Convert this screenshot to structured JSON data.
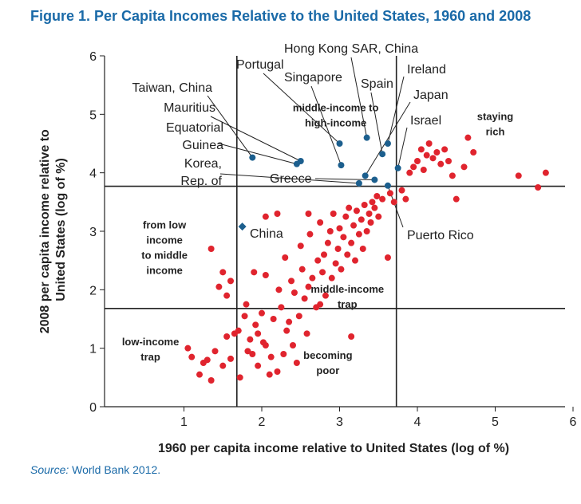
{
  "figure": {
    "title": "Figure 1. Per Capita Incomes Relative to the United States, 1960 and 2008",
    "source_label": "Source:",
    "source_text": "World Bank 2012."
  },
  "colors": {
    "title": "#1a6aa8",
    "red_dot": "#e0242e",
    "blue_dot": "#1c5f8e",
    "china_marker": "#1c5f8e",
    "axis": "#222222",
    "text": "#222222"
  },
  "chart_data": {
    "type": "scatter",
    "xlabel": "1960 per capita income relative to United States (log of %)",
    "ylabel": "2008 per capita income relative to United States (log of %)",
    "xlim": [
      0,
      6
    ],
    "ylim": [
      0,
      6
    ],
    "xticks": [
      0,
      1,
      2,
      3,
      4,
      5,
      6
    ],
    "yticks": [
      0,
      1,
      2,
      3,
      4,
      5,
      6
    ],
    "x_tick_labels": [
      "1",
      "2",
      "3",
      "4",
      "5",
      "6"
    ],
    "y_tick_labels": [
      "0",
      "1",
      "2",
      "3",
      "4",
      "5",
      "6"
    ],
    "thresholds": {
      "x": [
        1.68,
        3.73
      ],
      "y": [
        1.68,
        3.77
      ]
    },
    "quadrant_labels": [
      {
        "text": "middle-income to high-income",
        "lines": [
          "middle-income to",
          "high-income"
        ],
        "x": 2.95,
        "y": 5.05
      },
      {
        "text": "staying rich",
        "lines": [
          "staying",
          "rich"
        ],
        "x": 5.0,
        "y": 4.9
      },
      {
        "text": "from low income to middle income",
        "lines": [
          "from low",
          "income",
          "to middle",
          "income"
        ],
        "x": 0.75,
        "y": 3.05
      },
      {
        "text": "middle-income trap",
        "lines": [
          "middle-income",
          "trap"
        ],
        "x": 3.1,
        "y": 1.95
      },
      {
        "text": "low-income trap",
        "lines": [
          "low-income",
          "trap"
        ],
        "x": 0.57,
        "y": 1.05
      },
      {
        "text": "becoming poor",
        "lines": [
          "becoming",
          "poor"
        ],
        "x": 2.85,
        "y": 0.82
      }
    ],
    "series": [
      {
        "name": "highlighted economies",
        "color": "#1c5f8e",
        "points": [
          {
            "label": "Taiwan, China",
            "x": 1.88,
            "y": 4.26
          },
          {
            "label": "Mauritius",
            "x": 2.5,
            "y": 4.2
          },
          {
            "label": "Equatorial Guinea",
            "x": 2.45,
            "y": 4.15
          },
          {
            "label": "Korea, Rep. of",
            "x": 3.25,
            "y": 3.82
          },
          {
            "label": "Portugal",
            "x": 3.0,
            "y": 4.5
          },
          {
            "label": "Singapore",
            "x": 3.02,
            "y": 4.13
          },
          {
            "label": "Hong Kong SAR, China",
            "x": 3.35,
            "y": 4.6
          },
          {
            "label": "Spain",
            "x": 3.55,
            "y": 4.32
          },
          {
            "label": "Ireland",
            "x": 3.62,
            "y": 4.5
          },
          {
            "label": "Japan",
            "x": 3.33,
            "y": 3.95
          },
          {
            "label": "Israel",
            "x": 3.75,
            "y": 4.08
          },
          {
            "label": "Greece",
            "x": 3.45,
            "y": 3.88
          },
          {
            "label": "Puerto Rico",
            "x": 3.62,
            "y": 3.78
          }
        ]
      },
      {
        "name": "China",
        "color": "#1c5f8e",
        "marker": "diamond",
        "points": [
          {
            "label": "China",
            "x": 1.75,
            "y": 3.08
          }
        ]
      },
      {
        "name": "other economies",
        "color": "#e0242e",
        "points": [
          {
            "x": 1.05,
            "y": 1.0
          },
          {
            "x": 1.1,
            "y": 0.85
          },
          {
            "x": 1.2,
            "y": 0.55
          },
          {
            "x": 1.25,
            "y": 0.75
          },
          {
            "x": 1.3,
            "y": 0.8
          },
          {
            "x": 1.35,
            "y": 0.45
          },
          {
            "x": 1.4,
            "y": 0.95
          },
          {
            "x": 1.5,
            "y": 0.7
          },
          {
            "x": 1.55,
            "y": 1.2
          },
          {
            "x": 1.6,
            "y": 0.82
          },
          {
            "x": 1.65,
            "y": 1.25
          },
          {
            "x": 1.7,
            "y": 1.3
          },
          {
            "x": 1.72,
            "y": 0.5
          },
          {
            "x": 1.78,
            "y": 1.55
          },
          {
            "x": 1.8,
            "y": 1.75
          },
          {
            "x": 1.82,
            "y": 0.95
          },
          {
            "x": 1.85,
            "y": 1.15
          },
          {
            "x": 1.88,
            "y": 0.9
          },
          {
            "x": 1.9,
            "y": 2.3
          },
          {
            "x": 1.92,
            "y": 1.4
          },
          {
            "x": 1.95,
            "y": 0.7
          },
          {
            "x": 2.0,
            "y": 1.6
          },
          {
            "x": 2.02,
            "y": 1.1
          },
          {
            "x": 2.05,
            "y": 2.25
          },
          {
            "x": 2.1,
            "y": 0.55
          },
          {
            "x": 2.12,
            "y": 0.85
          },
          {
            "x": 2.15,
            "y": 1.5
          },
          {
            "x": 2.2,
            "y": 0.6
          },
          {
            "x": 2.22,
            "y": 2.0
          },
          {
            "x": 2.25,
            "y": 1.7
          },
          {
            "x": 2.28,
            "y": 0.9
          },
          {
            "x": 2.3,
            "y": 2.55
          },
          {
            "x": 2.32,
            "y": 1.3
          },
          {
            "x": 2.35,
            "y": 1.45
          },
          {
            "x": 2.38,
            "y": 2.15
          },
          {
            "x": 2.4,
            "y": 1.05
          },
          {
            "x": 2.42,
            "y": 1.95
          },
          {
            "x": 2.45,
            "y": 0.75
          },
          {
            "x": 2.48,
            "y": 1.55
          },
          {
            "x": 2.5,
            "y": 2.75
          },
          {
            "x": 2.52,
            "y": 2.35
          },
          {
            "x": 2.55,
            "y": 1.85
          },
          {
            "x": 2.58,
            "y": 1.25
          },
          {
            "x": 2.6,
            "y": 2.05
          },
          {
            "x": 2.62,
            "y": 2.95
          },
          {
            "x": 2.65,
            "y": 2.2
          },
          {
            "x": 2.7,
            "y": 1.7
          },
          {
            "x": 2.72,
            "y": 2.5
          },
          {
            "x": 2.75,
            "y": 3.15
          },
          {
            "x": 2.78,
            "y": 2.3
          },
          {
            "x": 2.8,
            "y": 2.6
          },
          {
            "x": 2.82,
            "y": 1.9
          },
          {
            "x": 2.85,
            "y": 2.8
          },
          {
            "x": 2.88,
            "y": 3.0
          },
          {
            "x": 2.9,
            "y": 2.2
          },
          {
            "x": 2.92,
            "y": 3.3
          },
          {
            "x": 2.95,
            "y": 2.45
          },
          {
            "x": 2.98,
            "y": 2.7
          },
          {
            "x": 3.0,
            "y": 3.05
          },
          {
            "x": 3.02,
            "y": 2.35
          },
          {
            "x": 3.05,
            "y": 2.9
          },
          {
            "x": 3.08,
            "y": 3.25
          },
          {
            "x": 3.1,
            "y": 2.6
          },
          {
            "x": 3.12,
            "y": 3.4
          },
          {
            "x": 3.15,
            "y": 2.8
          },
          {
            "x": 3.18,
            "y": 3.1
          },
          {
            "x": 3.2,
            "y": 2.5
          },
          {
            "x": 3.22,
            "y": 3.35
          },
          {
            "x": 3.25,
            "y": 2.95
          },
          {
            "x": 3.28,
            "y": 3.2
          },
          {
            "x": 3.3,
            "y": 2.7
          },
          {
            "x": 3.32,
            "y": 3.45
          },
          {
            "x": 3.35,
            "y": 3.0
          },
          {
            "x": 3.38,
            "y": 3.3
          },
          {
            "x": 3.4,
            "y": 3.15
          },
          {
            "x": 3.42,
            "y": 3.5
          },
          {
            "x": 3.45,
            "y": 3.4
          },
          {
            "x": 3.48,
            "y": 3.6
          },
          {
            "x": 3.5,
            "y": 3.25
          },
          {
            "x": 3.55,
            "y": 3.55
          },
          {
            "x": 3.62,
            "y": 2.55
          },
          {
            "x": 3.65,
            "y": 3.65
          },
          {
            "x": 3.7,
            "y": 3.5
          },
          {
            "x": 3.8,
            "y": 3.7
          },
          {
            "x": 3.85,
            "y": 3.55
          },
          {
            "x": 3.9,
            "y": 4.0
          },
          {
            "x": 3.95,
            "y": 4.1
          },
          {
            "x": 4.0,
            "y": 4.2
          },
          {
            "x": 4.05,
            "y": 4.4
          },
          {
            "x": 4.08,
            "y": 4.05
          },
          {
            "x": 4.12,
            "y": 4.3
          },
          {
            "x": 4.15,
            "y": 4.5
          },
          {
            "x": 4.2,
            "y": 4.25
          },
          {
            "x": 4.25,
            "y": 4.35
          },
          {
            "x": 4.3,
            "y": 4.15
          },
          {
            "x": 4.35,
            "y": 4.4
          },
          {
            "x": 4.4,
            "y": 4.2
          },
          {
            "x": 4.45,
            "y": 3.95
          },
          {
            "x": 4.5,
            "y": 3.55
          },
          {
            "x": 4.6,
            "y": 4.1
          },
          {
            "x": 4.65,
            "y": 4.6
          },
          {
            "x": 4.72,
            "y": 4.35
          },
          {
            "x": 5.3,
            "y": 3.95
          },
          {
            "x": 5.55,
            "y": 3.75
          },
          {
            "x": 5.65,
            "y": 4.0
          },
          {
            "x": 1.45,
            "y": 2.05
          },
          {
            "x": 1.5,
            "y": 2.3
          },
          {
            "x": 1.55,
            "y": 1.9
          },
          {
            "x": 1.35,
            "y": 2.7
          },
          {
            "x": 1.6,
            "y": 2.15
          },
          {
            "x": 2.05,
            "y": 3.25
          },
          {
            "x": 2.2,
            "y": 3.3
          },
          {
            "x": 2.6,
            "y": 3.3
          },
          {
            "x": 2.75,
            "y": 1.75
          },
          {
            "x": 3.15,
            "y": 1.2
          },
          {
            "x": 2.05,
            "y": 1.05
          },
          {
            "x": 1.95,
            "y": 1.25
          }
        ]
      }
    ]
  }
}
